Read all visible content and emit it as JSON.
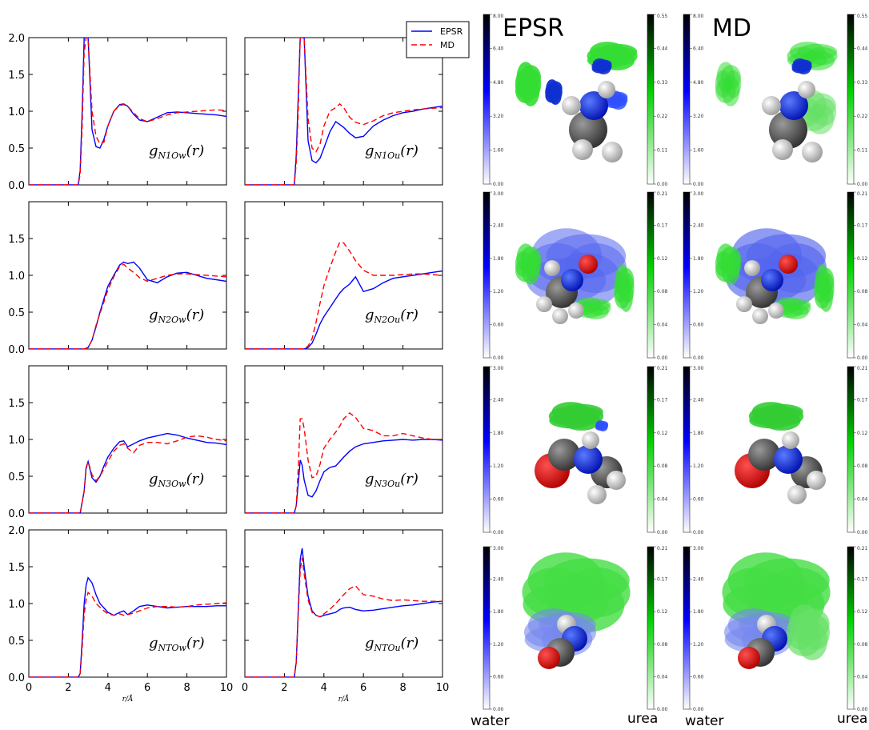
{
  "chart_data": [
    {
      "type": "line",
      "x": [
        0,
        1,
        2,
        2.5,
        2.6,
        2.7,
        2.8,
        2.9,
        3.0,
        3.2,
        3.4,
        3.6,
        3.8,
        4.0,
        4.3,
        4.6,
        4.8,
        5.0,
        5.3,
        5.6,
        6.0,
        6.5,
        7.0,
        7.5,
        8.0,
        8.5,
        9.0,
        9.5,
        10.0
      ],
      "series": [
        {
          "name": "EPSR",
          "color": "#0000ff",
          "dash": "",
          "values": [
            0,
            0,
            0,
            0,
            0.2,
            1.0,
            2.0,
            2.0,
            2.0,
            0.75,
            0.52,
            0.5,
            0.62,
            0.8,
            1.0,
            1.09,
            1.1,
            1.07,
            0.96,
            0.88,
            0.86,
            0.92,
            0.98,
            0.99,
            0.98,
            0.97,
            0.96,
            0.95,
            0.93
          ]
        },
        {
          "name": "MD",
          "color": "#ff0000",
          "dash": "7,4",
          "values": [
            0,
            0,
            0,
            0,
            0.15,
            0.8,
            1.8,
            2.0,
            2.0,
            1.0,
            0.66,
            0.56,
            0.58,
            0.8,
            1.0,
            1.08,
            1.09,
            1.07,
            0.98,
            0.9,
            0.86,
            0.9,
            0.95,
            0.98,
            0.99,
            1.0,
            1.01,
            1.02,
            1.01
          ]
        }
      ],
      "annotation": "g_{N1Ow}(r)",
      "ylim": [
        0,
        2.0
      ],
      "xlim": [
        0,
        10
      ],
      "yticks": [
        "0.0",
        "0.5",
        "1.0",
        "1.5",
        "2.0"
      ],
      "xticks": []
    },
    {
      "type": "line",
      "x": [
        0,
        1,
        2,
        2.5,
        2.6,
        2.7,
        2.8,
        2.9,
        3.0,
        3.2,
        3.4,
        3.6,
        3.8,
        4.0,
        4.3,
        4.6,
        4.8,
        5.0,
        5.3,
        5.6,
        6.0,
        6.5,
        7.0,
        7.5,
        8.0,
        8.5,
        9.0,
        9.5,
        10.0
      ],
      "series": [
        {
          "name": "EPSR",
          "color": "#0000ff",
          "dash": "",
          "values": [
            0,
            0,
            0,
            0,
            0.4,
            1.2,
            2.0,
            2.0,
            2.0,
            0.6,
            0.33,
            0.3,
            0.36,
            0.5,
            0.72,
            0.86,
            0.82,
            0.78,
            0.7,
            0.64,
            0.66,
            0.8,
            0.88,
            0.94,
            0.98,
            1.0,
            1.03,
            1.05,
            1.07
          ]
        },
        {
          "name": "MD",
          "color": "#ff0000",
          "dash": "7,4",
          "values": [
            0,
            0,
            0,
            0,
            0.3,
            1.0,
            2.0,
            2.0,
            2.0,
            0.9,
            0.5,
            0.45,
            0.55,
            0.8,
            1.0,
            1.05,
            1.1,
            1.05,
            0.92,
            0.85,
            0.82,
            0.87,
            0.94,
            0.98,
            1.0,
            1.02,
            1.03,
            1.04,
            1.05
          ]
        }
      ],
      "annotation": "g_{N1Ou}(r)",
      "ylim": [
        0,
        2.0
      ],
      "xlim": [
        0,
        10
      ],
      "yticks": [],
      "xticks": []
    },
    {
      "type": "line",
      "x": [
        0,
        1,
        2,
        2.5,
        2.8,
        3.0,
        3.2,
        3.4,
        3.6,
        3.8,
        4.0,
        4.3,
        4.6,
        4.8,
        5.0,
        5.3,
        5.6,
        6.0,
        6.5,
        7.0,
        7.5,
        8.0,
        8.5,
        9.0,
        9.5,
        10.0
      ],
      "series": [
        {
          "name": "EPSR",
          "color": "#0000ff",
          "dash": "",
          "values": [
            0,
            0,
            0,
            0,
            0,
            0.02,
            0.12,
            0.3,
            0.5,
            0.68,
            0.85,
            1.0,
            1.14,
            1.18,
            1.16,
            1.18,
            1.1,
            0.94,
            0.9,
            0.98,
            1.03,
            1.04,
            1.0,
            0.96,
            0.94,
            0.92
          ]
        },
        {
          "name": "MD",
          "color": "#ff0000",
          "dash": "7,4",
          "values": [
            0,
            0,
            0,
            0,
            0,
            0.02,
            0.12,
            0.32,
            0.48,
            0.64,
            0.8,
            0.98,
            1.12,
            1.15,
            1.1,
            1.04,
            0.97,
            0.92,
            0.96,
            1.0,
            1.02,
            1.02,
            1.01,
            1.0,
            0.99,
            0.98
          ]
        }
      ],
      "annotation": "g_{N2Ow}(r)",
      "ylim": [
        0,
        2.0
      ],
      "xlim": [
        0,
        10
      ],
      "yticks": [
        "0.0",
        "0.5",
        "1.0",
        "1.5"
      ],
      "xticks": []
    },
    {
      "type": "line",
      "x": [
        0,
        1,
        2,
        2.5,
        2.8,
        3.0,
        3.2,
        3.4,
        3.6,
        3.8,
        4.0,
        4.3,
        4.6,
        4.8,
        5.0,
        5.3,
        5.6,
        6.0,
        6.5,
        7.0,
        7.5,
        8.0,
        8.5,
        9.0,
        9.5,
        10.0
      ],
      "series": [
        {
          "name": "EPSR",
          "color": "#0000ff",
          "dash": "",
          "values": [
            0,
            0,
            0,
            0,
            0,
            0,
            0.02,
            0.08,
            0.2,
            0.34,
            0.44,
            0.56,
            0.68,
            0.76,
            0.82,
            0.88,
            0.98,
            0.78,
            0.82,
            0.9,
            0.96,
            0.98,
            1.0,
            1.02,
            1.04,
            1.06
          ]
        },
        {
          "name": "MD",
          "color": "#ff0000",
          "dash": "7,4",
          "values": [
            0,
            0,
            0,
            0,
            0,
            0,
            0.04,
            0.14,
            0.36,
            0.62,
            0.86,
            1.1,
            1.32,
            1.45,
            1.44,
            1.33,
            1.2,
            1.07,
            1.0,
            1.0,
            1.0,
            1.01,
            1.02,
            1.02,
            1.01,
            1.0
          ]
        }
      ],
      "annotation": "g_{N2Ou}(r)",
      "ylim": [
        0,
        2.0
      ],
      "xlim": [
        0,
        10
      ],
      "yticks": [],
      "xticks": []
    },
    {
      "type": "line",
      "x": [
        0,
        1,
        2,
        2.5,
        2.6,
        2.8,
        2.9,
        3.0,
        3.2,
        3.4,
        3.6,
        3.8,
        4.0,
        4.3,
        4.6,
        4.8,
        5.0,
        5.3,
        5.6,
        6.0,
        6.5,
        7.0,
        7.5,
        8.0,
        8.5,
        9.0,
        9.5,
        10.0
      ],
      "series": [
        {
          "name": "EPSR",
          "color": "#0000ff",
          "dash": "",
          "values": [
            0,
            0,
            0,
            0,
            0,
            0.3,
            0.62,
            0.7,
            0.48,
            0.42,
            0.5,
            0.64,
            0.76,
            0.88,
            0.97,
            0.98,
            0.9,
            0.94,
            0.98,
            1.02,
            1.05,
            1.08,
            1.06,
            1.02,
            0.99,
            0.96,
            0.95,
            0.93
          ]
        },
        {
          "name": "MD",
          "color": "#ff0000",
          "dash": "7,4",
          "values": [
            0,
            0,
            0,
            0,
            0,
            0.3,
            0.6,
            0.7,
            0.52,
            0.44,
            0.5,
            0.6,
            0.7,
            0.84,
            0.92,
            0.94,
            0.88,
            0.82,
            0.92,
            0.96,
            0.96,
            0.94,
            0.98,
            1.03,
            1.05,
            1.03,
            1.0,
            0.98
          ]
        }
      ],
      "annotation": "g_{N3Ow}(r)",
      "ylim": [
        0,
        2.0
      ],
      "xlim": [
        0,
        10
      ],
      "yticks": [
        "0.0",
        "0.5",
        "1.0",
        "1.5"
      ],
      "xticks": []
    },
    {
      "type": "line",
      "x": [
        0,
        1,
        2,
        2.5,
        2.6,
        2.7,
        2.8,
        2.9,
        3.0,
        3.2,
        3.4,
        3.6,
        3.8,
        4.0,
        4.3,
        4.6,
        4.8,
        5.0,
        5.3,
        5.6,
        6.0,
        6.5,
        7.0,
        7.5,
        8.0,
        8.5,
        9.0,
        9.5,
        10.0
      ],
      "series": [
        {
          "name": "EPSR",
          "color": "#0000ff",
          "dash": "",
          "values": [
            0,
            0,
            0,
            0,
            0.1,
            0.4,
            0.72,
            0.65,
            0.45,
            0.24,
            0.22,
            0.3,
            0.44,
            0.56,
            0.62,
            0.64,
            0.7,
            0.76,
            0.84,
            0.9,
            0.94,
            0.96,
            0.98,
            0.99,
            1.0,
            0.99,
            1.0,
            1.0,
            0.99
          ]
        },
        {
          "name": "MD",
          "color": "#ff0000",
          "dash": "7,4",
          "values": [
            0,
            0,
            0,
            0,
            0.1,
            0.6,
            1.28,
            1.28,
            1.15,
            0.72,
            0.48,
            0.5,
            0.66,
            0.88,
            1.0,
            1.1,
            1.18,
            1.28,
            1.36,
            1.3,
            1.15,
            1.12,
            1.05,
            1.05,
            1.08,
            1.05,
            1.02,
            1.0,
            1.0
          ]
        }
      ],
      "annotation": "g_{N3Ou}(r)",
      "ylim": [
        0,
        2.0
      ],
      "xlim": [
        0,
        10
      ],
      "yticks": [],
      "xticks": []
    },
    {
      "type": "line",
      "x": [
        0,
        1,
        2,
        2.5,
        2.6,
        2.7,
        2.8,
        2.9,
        3.0,
        3.2,
        3.4,
        3.6,
        3.8,
        4.0,
        4.3,
        4.6,
        4.8,
        5.0,
        5.3,
        5.6,
        6.0,
        6.5,
        7.0,
        7.5,
        8.0,
        8.5,
        9.0,
        9.5,
        10.0
      ],
      "series": [
        {
          "name": "EPSR",
          "color": "#0000ff",
          "dash": "",
          "values": [
            0,
            0,
            0,
            0,
            0.05,
            0.5,
            1.0,
            1.25,
            1.35,
            1.28,
            1.12,
            1.0,
            0.94,
            0.88,
            0.84,
            0.88,
            0.9,
            0.85,
            0.9,
            0.96,
            0.98,
            0.96,
            0.94,
            0.95,
            0.96,
            0.96,
            0.96,
            0.97,
            0.97
          ]
        },
        {
          "name": "MD",
          "color": "#ff0000",
          "dash": "7,4",
          "values": [
            0,
            0,
            0,
            0,
            0.05,
            0.4,
            0.85,
            1.05,
            1.15,
            1.1,
            1.0,
            0.95,
            0.9,
            0.86,
            0.84,
            0.86,
            0.84,
            0.85,
            0.87,
            0.9,
            0.94,
            0.96,
            0.96,
            0.95,
            0.96,
            0.98,
            0.99,
            1.0,
            1.01
          ]
        }
      ],
      "annotation": "g_{NTOw}(r)",
      "ylim": [
        0,
        2.0
      ],
      "xlim": [
        0,
        10
      ],
      "yticks": [
        "0.0",
        "0.5",
        "1.0",
        "1.5",
        "2.0"
      ],
      "xticks": [
        "0",
        "2",
        "4",
        "6",
        "8",
        "10"
      ],
      "xlabel": "r/Å"
    },
    {
      "type": "line",
      "x": [
        0,
        1,
        2,
        2.5,
        2.6,
        2.7,
        2.8,
        2.9,
        3.0,
        3.2,
        3.4,
        3.6,
        3.8,
        4.0,
        4.3,
        4.6,
        4.8,
        5.0,
        5.3,
        5.6,
        6.0,
        6.5,
        7.0,
        7.5,
        8.0,
        8.5,
        9.0,
        9.5,
        10.0
      ],
      "series": [
        {
          "name": "EPSR",
          "color": "#0000ff",
          "dash": "",
          "values": [
            0,
            0,
            0,
            0,
            0.2,
            0.9,
            1.6,
            1.75,
            1.5,
            1.1,
            0.9,
            0.84,
            0.82,
            0.84,
            0.86,
            0.88,
            0.92,
            0.94,
            0.95,
            0.92,
            0.9,
            0.91,
            0.93,
            0.95,
            0.97,
            0.98,
            1.0,
            1.02,
            1.03
          ]
        },
        {
          "name": "MD",
          "color": "#ff0000",
          "dash": "7,4",
          "values": [
            0,
            0,
            0,
            0,
            0.2,
            0.85,
            1.45,
            1.62,
            1.4,
            1.05,
            0.88,
            0.84,
            0.82,
            0.86,
            0.92,
            1.0,
            1.06,
            1.12,
            1.2,
            1.24,
            1.12,
            1.1,
            1.06,
            1.04,
            1.05,
            1.04,
            1.03,
            1.03,
            1.03
          ]
        }
      ],
      "annotation": "g_{NTOu}(r)",
      "ylim": [
        0,
        2.0
      ],
      "xlim": [
        0,
        10
      ],
      "yticks": [],
      "xticks": [
        "0",
        "2",
        "4",
        "6",
        "8",
        "10"
      ],
      "xlabel": "r/Å"
    }
  ],
  "legend": {
    "entries": [
      {
        "label": "EPSR",
        "color": "#0000ff",
        "dash": ""
      },
      {
        "label": "MD",
        "color": "#ff0000",
        "dash": "7,4"
      }
    ]
  },
  "sdf_panels": {
    "column_titles": [
      "EPSR",
      "MD"
    ],
    "water_colorbar_color": "#0000ff",
    "urea_colorbar_color": "#00d000",
    "water_colorbar_ticks": [
      [
        "8.00",
        "6.40",
        "4.80",
        "3.20",
        "1.60",
        "0.00"
      ],
      [
        "3.00",
        "2.40",
        "1.80",
        "1.20",
        "0.60",
        "0.00"
      ],
      [
        "3.00",
        "2.40",
        "1.80",
        "1.20",
        "0.60",
        "0.00"
      ],
      [
        "3.00",
        "2.40",
        "1.80",
        "1.20",
        "0.60",
        "0.00"
      ]
    ],
    "urea_colorbar_ticks": [
      [
        "0.55",
        "0.44",
        "0.33",
        "0.22",
        "0.11",
        "0.00"
      ],
      [
        "0.21",
        "0.17",
        "0.12",
        "0.08",
        "0.04",
        "0.00"
      ],
      [
        "0.21",
        "0.17",
        "0.12",
        "0.08",
        "0.04",
        "0.00"
      ],
      [
        "0.21",
        "0.17",
        "0.12",
        "0.08",
        "0.04",
        "0.00"
      ]
    ],
    "bottom_labels": [
      "water",
      "urea",
      "water",
      "urea"
    ]
  }
}
